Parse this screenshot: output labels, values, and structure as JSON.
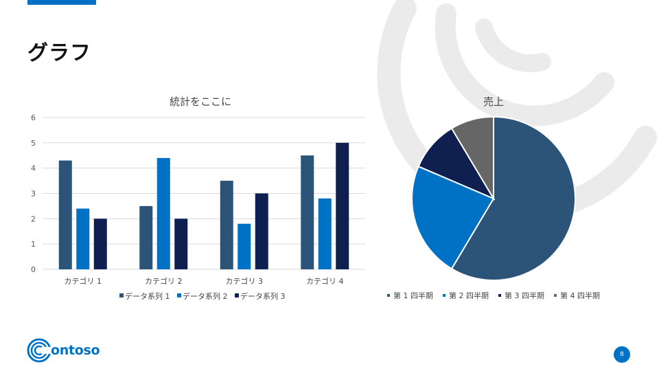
{
  "slide": {
    "title": "グラフ",
    "page_number": "8",
    "logo_text": "ontoso"
  },
  "colors": {
    "accent": "#0072c6",
    "series": [
      "#2c5478",
      "#0072c6",
      "#0f1f4f"
    ],
    "pie": [
      "#2c5478",
      "#0072c6",
      "#0f1f4f",
      "#666666"
    ]
  },
  "chart_data": [
    {
      "type": "bar",
      "title": "統計をここに",
      "categories": [
        "カテゴリ 1",
        "カテゴリ 2",
        "カテゴリ 3",
        "カテゴリ 4"
      ],
      "series": [
        {
          "name": "データ系列 1",
          "values": [
            4.3,
            2.5,
            3.5,
            4.5
          ]
        },
        {
          "name": "データ系列 2",
          "values": [
            2.4,
            4.4,
            1.8,
            2.8
          ]
        },
        {
          "name": "データ系列 3",
          "values": [
            2,
            2,
            3,
            5
          ]
        }
      ],
      "ylim": [
        0,
        6
      ],
      "yticks": [
        "0",
        "1",
        "2",
        "3",
        "4",
        "5",
        "6"
      ],
      "grid": true,
      "legend": "bottom"
    },
    {
      "type": "pie",
      "title": "売上",
      "labels": [
        "第 1 四半期",
        "第 2 四半期",
        "第 3 四半期",
        "第 4 四半期"
      ],
      "values": [
        8.2,
        3.2,
        1.4,
        1.2
      ],
      "legend": "bottom"
    }
  ]
}
